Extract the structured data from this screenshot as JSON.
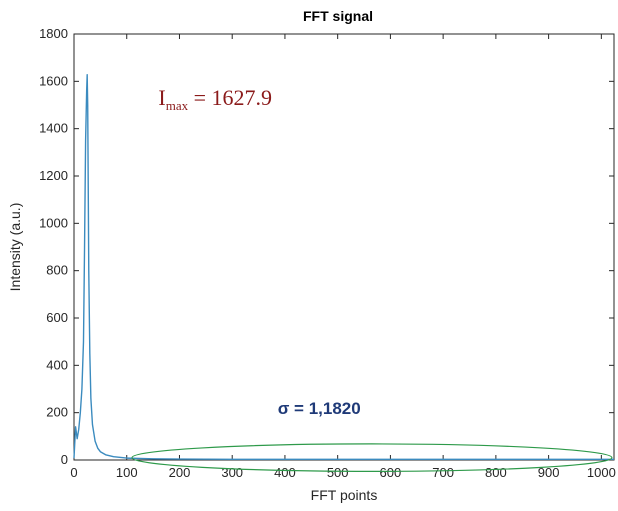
{
  "chart_data": {
    "type": "line",
    "title": "FFT signal",
    "xlabel": "FFT points",
    "ylabel": "Intensity (a.u.)",
    "xlim": [
      0,
      1024
    ],
    "ylim": [
      0,
      1800
    ],
    "xticks": [
      0,
      100,
      200,
      300,
      400,
      500,
      600,
      700,
      800,
      900,
      1000
    ],
    "yticks": [
      0,
      200,
      400,
      600,
      800,
      1000,
      1200,
      1400,
      1600,
      1800
    ],
    "grid": false,
    "series": [
      {
        "color": "#3b8bbf",
        "x": [
          0,
          3,
          6,
          9,
          12,
          15,
          18,
          20,
          22,
          24,
          25,
          26,
          27,
          28,
          30,
          32,
          35,
          40,
          45,
          50,
          60,
          75,
          100,
          150,
          200,
          300,
          400,
          500,
          600,
          700,
          800,
          900,
          1000,
          1024
        ],
        "y": [
          8,
          140,
          90,
          130,
          200,
          300,
          500,
          900,
          1350,
          1560,
          1627.9,
          1500,
          1150,
          800,
          450,
          260,
          150,
          80,
          50,
          35,
          22,
          14,
          8,
          5,
          4,
          3,
          3,
          3,
          3,
          3,
          3,
          3,
          3,
          3
        ]
      }
    ],
    "annotations": [
      {
        "id": "imax",
        "base": "I",
        "sub": "max",
        "text": " = 1627.9",
        "color": "#8b1a1a",
        "x": 160,
        "y": 1500
      },
      {
        "id": "sigma",
        "text": "σ = 1,1820",
        "color": "#1f3a78",
        "x": 465,
        "y": 195
      }
    ],
    "highlight": {
      "shape": "ellipse",
      "color": "#2e9a4a",
      "x_range": [
        110,
        1020
      ],
      "y_center": 10,
      "y_half": 58
    }
  }
}
